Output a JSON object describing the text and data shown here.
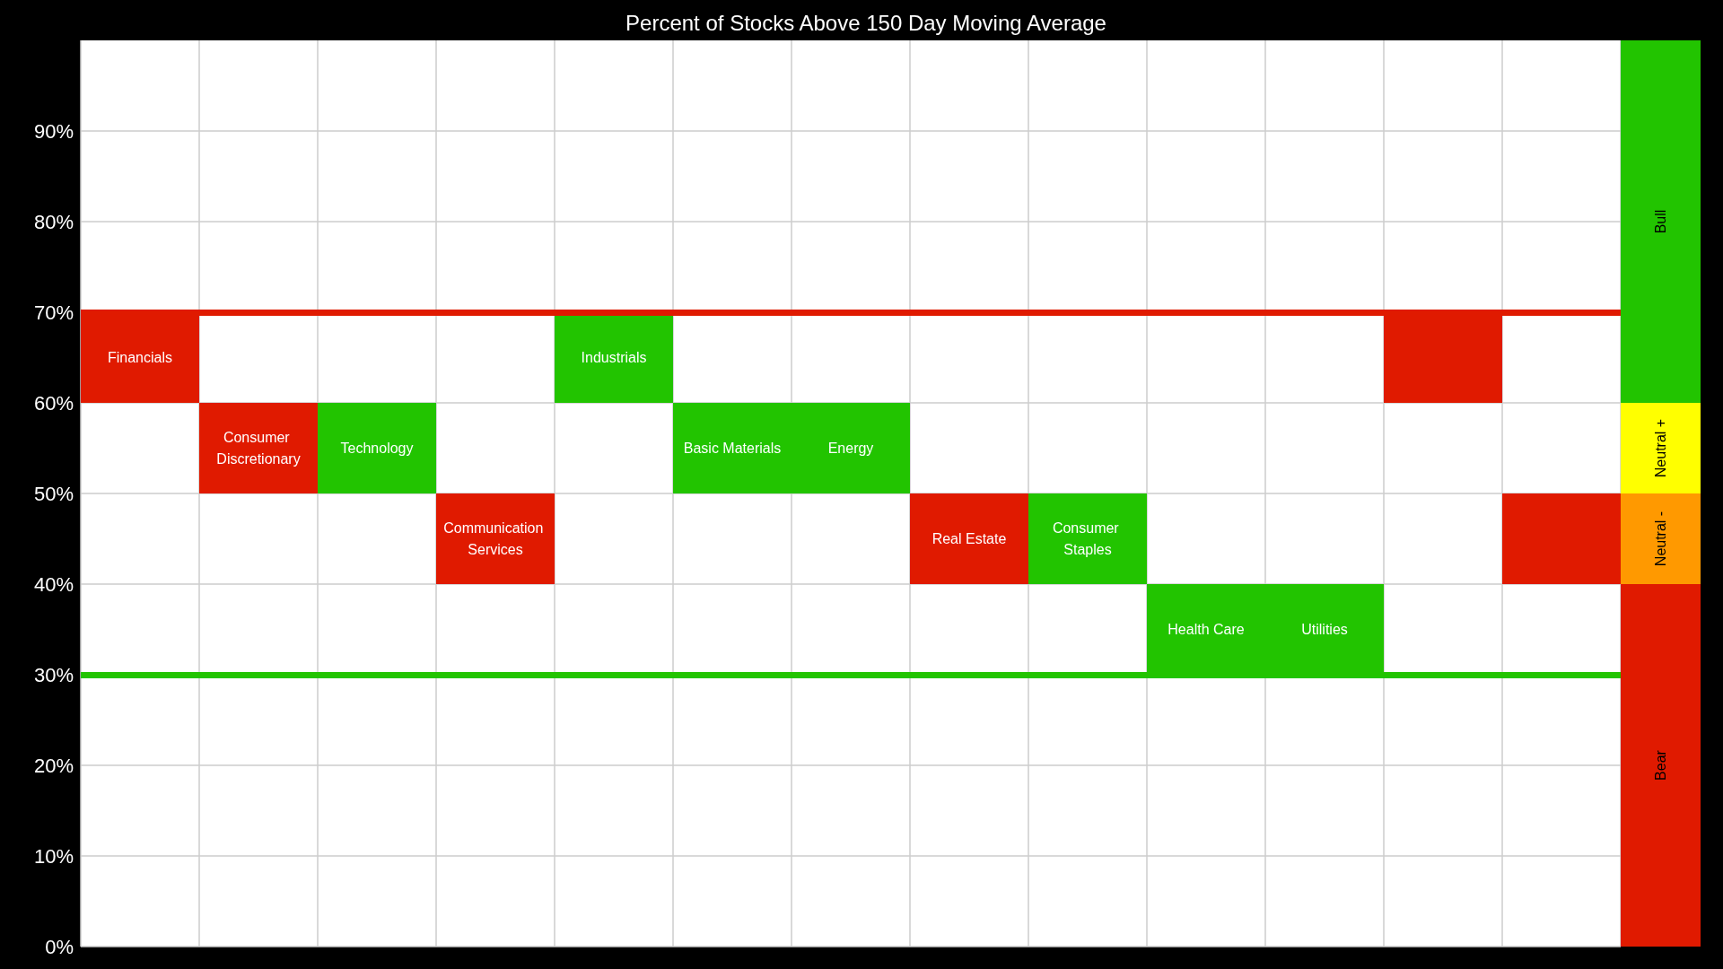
{
  "chart_data": [
    {
      "type": "bar",
      "title": "Percent of Stocks Above 150 Day Moving Average",
      "categories": [
        null,
        null,
        null,
        null,
        null,
        null,
        null,
        null,
        null,
        null,
        null,
        null,
        null
      ],
      "base": [
        60,
        50,
        50,
        40,
        60,
        50,
        50,
        40,
        40,
        30,
        30,
        60,
        40
      ],
      "values": [
        10,
        10,
        10,
        10,
        10,
        10,
        10,
        10,
        10,
        10,
        10,
        10,
        10
      ],
      "colors": [
        "#e01a00",
        "#e01a00",
        "#22c400",
        "#e01a00",
        "#22c400",
        "#22c400",
        "#22c400",
        "#e01a00",
        "#22c400",
        "#22c400",
        "#22c400",
        "#e01a00",
        "#e01a00"
      ],
      "value_labels": [
        "Financials",
        "Consumer Discretionary",
        "Technology",
        "Communication Services",
        "Industrials",
        "Basic Materials",
        "Energy",
        "Real Estate",
        "Consumer Staples",
        "Health Care",
        "Utilities",
        null,
        null
      ],
      "ylim": [
        0,
        100
      ],
      "yticks": [
        {
          "value": 0,
          "label": "0%"
        },
        {
          "value": 10,
          "label": "10%"
        },
        {
          "value": 20,
          "label": "20%"
        },
        {
          "value": 30,
          "label": "30%"
        },
        {
          "value": 40,
          "label": "40%"
        },
        {
          "value": 50,
          "label": "50%"
        },
        {
          "value": 60,
          "label": "60%"
        },
        {
          "value": 70,
          "label": "70%"
        },
        {
          "value": 80,
          "label": "80%"
        },
        {
          "value": 90,
          "label": "90%"
        }
      ],
      "tick_labels": "y",
      "grid": true,
      "ref_lines": [
        {
          "axis": "y",
          "value": 70,
          "color": "#e01a00"
        },
        {
          "axis": "y",
          "value": 30,
          "color": "#22c400"
        }
      ]
    },
    {
      "type": "bar",
      "stacked": true,
      "categories": [
        null
      ],
      "series": [
        {
          "name": "Bear",
          "color": "#e01a00",
          "values": [
            40
          ]
        },
        {
          "name": "Neutral -",
          "color": "#ff9900",
          "values": [
            10
          ]
        },
        {
          "name": "Neutral +",
          "color": "#ffff00",
          "values": [
            10
          ]
        },
        {
          "name": "Bull",
          "color": "#22c400",
          "values": [
            40
          ]
        }
      ],
      "ylim": [
        0,
        100
      ],
      "tick_labels": false
    }
  ]
}
